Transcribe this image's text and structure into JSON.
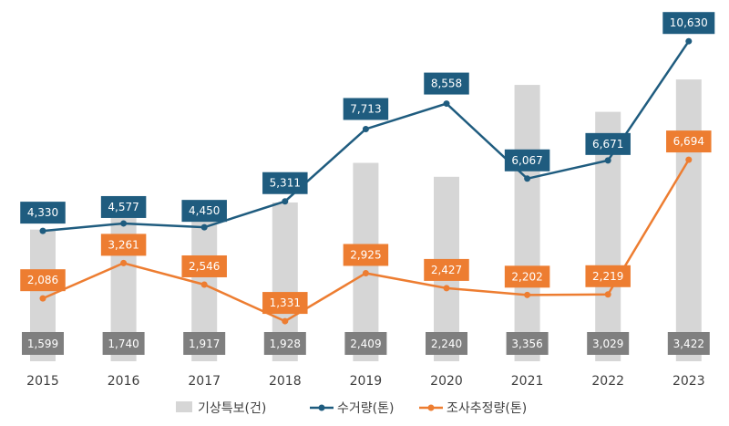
{
  "chart_data": {
    "type": "bar-line-combo",
    "categories": [
      "2015",
      "2016",
      "2017",
      "2018",
      "2019",
      "2020",
      "2021",
      "2022",
      "2023"
    ],
    "series": [
      {
        "name": "기상특보(건)",
        "kind": "bar",
        "color": "#d6d6d6",
        "label_color": "#7f7f7f",
        "values": [
          1599,
          1740,
          1917,
          1928,
          2409,
          2240,
          3356,
          3029,
          3422
        ],
        "labels": [
          "1,599",
          "1,740",
          "1,917",
          "1,928",
          "2,409",
          "2,240",
          "3,356",
          "3,029",
          "3,422"
        ]
      },
      {
        "name": "수거량(톤)",
        "kind": "line",
        "color": "#1f5c7f",
        "values": [
          4330,
          4577,
          4450,
          5311,
          7713,
          8558,
          6067,
          6671,
          10630
        ],
        "labels": [
          "4,330",
          "4,577",
          "4,450",
          "5,311",
          "7,713",
          "8,558",
          "6,067",
          "6,671",
          "10,630"
        ]
      },
      {
        "name": "조사추정량(톤)",
        "kind": "line",
        "color": "#ed7d31",
        "values": [
          2086,
          3261,
          2546,
          1331,
          2925,
          2427,
          2202,
          2219,
          6694
        ],
        "labels": [
          "2,086",
          "3,261",
          "2,546",
          "1,331",
          "2,925",
          "2,427",
          "2,202",
          "2,219",
          "6,694"
        ]
      }
    ],
    "axes": {
      "bar_ylim": [
        0,
        3800
      ],
      "line_ylim": [
        0,
        12000
      ]
    },
    "grid": false,
    "legend_position": "bottom"
  }
}
